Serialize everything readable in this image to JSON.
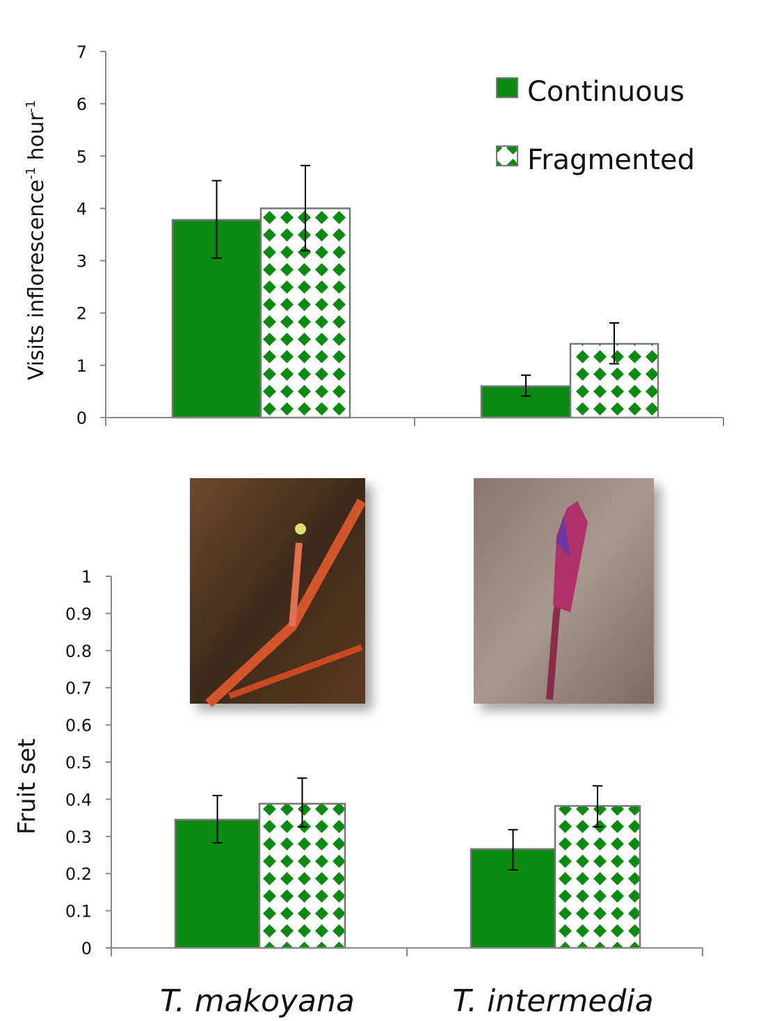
{
  "colors": {
    "continuous": "#0b8a12",
    "fragmented_pattern": "#0b8a12",
    "bar_border": "#777777"
  },
  "legend": {
    "items": [
      {
        "label": "Continuous",
        "pattern": "solid"
      },
      {
        "label": "Fragmented",
        "pattern": "diamond-checker"
      }
    ],
    "placement": "top-right"
  },
  "categories": [
    "T. makoyana",
    "T. intermedia"
  ],
  "photos": [
    {
      "name": "makoyana-photo"
    },
    {
      "name": "intermedia-photo"
    }
  ],
  "chart_data": [
    {
      "type": "bar",
      "ylabel": "Visits inflorescence",
      "ylabel_sup1": "-1",
      "ylabel_mid": " hour",
      "ylabel_sup2": "-1",
      "ylim": [
        0,
        7
      ],
      "yticks": [
        "0",
        "1",
        "2",
        "3",
        "4",
        "5",
        "6",
        "7"
      ],
      "categories": [
        "T. makoyana",
        "T. intermedia"
      ],
      "series": [
        {
          "name": "Continuous",
          "values": [
            3.78,
            0.6
          ],
          "err_high": [
            4.53,
            0.81
          ],
          "err_low": [
            3.05,
            0.41
          ]
        },
        {
          "name": "Fragmented",
          "values": [
            4.0,
            1.41
          ],
          "err_high": [
            4.82,
            1.81
          ],
          "err_low": [
            3.19,
            1.03
          ]
        }
      ],
      "grid": false
    },
    {
      "type": "bar",
      "ylabel": "Fruit set",
      "ylim": [
        0,
        1
      ],
      "yticks": [
        "0",
        "0.1",
        "0.2",
        "0.3",
        "0.4",
        "0.5",
        "0.6",
        "0.7",
        "0.8",
        "0.9",
        "1"
      ],
      "categories": [
        "T. makoyana",
        "T. intermedia"
      ],
      "series": [
        {
          "name": "Continuous",
          "values": [
            0.345,
            0.266
          ],
          "err_high": [
            0.41,
            0.318
          ],
          "err_low": [
            0.283,
            0.21
          ]
        },
        {
          "name": "Fragmented",
          "values": [
            0.388,
            0.382
          ],
          "err_high": [
            0.457,
            0.436
          ],
          "err_low": [
            0.326,
            0.326
          ]
        }
      ],
      "grid": false
    }
  ]
}
